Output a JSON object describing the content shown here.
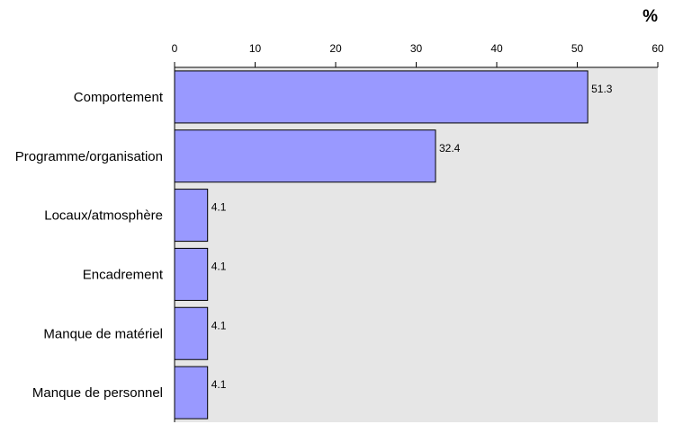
{
  "chart_data": {
    "type": "bar",
    "orientation": "horizontal",
    "unit": "%",
    "categories": [
      "Comportement",
      "Programme/organisation",
      "Locaux/atmosphère",
      "Encadrement",
      "Manque de matériel",
      "Manque de personnel"
    ],
    "values": [
      51.3,
      32.4,
      4.1,
      4.1,
      4.1,
      4.1
    ],
    "data_labels": [
      "51.3",
      "32.4",
      "4.1",
      "4.1",
      "4.1",
      "4.1"
    ],
    "xlim": [
      0,
      60
    ],
    "x_ticks": [
      0,
      10,
      20,
      30,
      40,
      50,
      60
    ],
    "x_axis_position": "top",
    "title": "",
    "xlabel": "",
    "ylabel": "",
    "grid": false,
    "legend": "none"
  },
  "colors": {
    "bar_fill": "#9999ff",
    "bar_stroke": "#000000",
    "plot_background": "#e6e6e6",
    "axis": "#000000"
  }
}
